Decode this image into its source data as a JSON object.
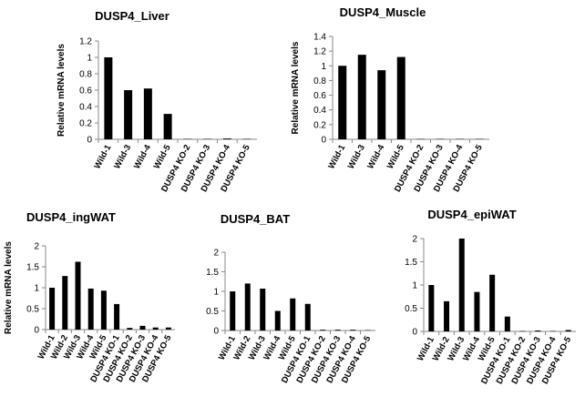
{
  "chart_data": [
    {
      "type": "bar",
      "title": "DUSP4_Liver",
      "y_label": "Relative mRNA levels",
      "categories": [
        "Wild-1",
        "Wild-3",
        "Wild-4",
        "Wild-5",
        "DUSP4 KO-2",
        "DUSP4 KO-3",
        "DUSP4 KO-4",
        "DUSP4 KO-5"
      ],
      "values": [
        1.0,
        0.6,
        0.62,
        0.31,
        0.005,
        0.005,
        0.01,
        0.005
      ],
      "color": "#000000",
      "ylim": [
        0,
        1.2
      ],
      "yticks": [
        0,
        0.2,
        0.4,
        0.6,
        0.8,
        1,
        1.2
      ]
    },
    {
      "type": "bar",
      "title": "DUSP4_Muscle",
      "y_label": "Relative mRNA levels",
      "categories": [
        "Wild-1",
        "Wild-3",
        "Wild-4",
        "Wild-5",
        "DUSP4 KO-2",
        "DUSP4 KO-3",
        "DUSP4 KO-4",
        "DUSP4 KO-5"
      ],
      "values": [
        1.0,
        1.15,
        0.94,
        1.12,
        0.005,
        0.005,
        0.005,
        0.005
      ],
      "color": "#000000",
      "ylim": [
        0,
        1.4
      ],
      "yticks": [
        0,
        0.2,
        0.4,
        0.6,
        0.8,
        1,
        1.2,
        1.4
      ]
    },
    {
      "type": "bar",
      "title": "DUSP4_ingWAT",
      "y_label": "Relative mRNA levels",
      "categories": [
        "Wild-1",
        "Wild-2",
        "Wild-3",
        "Wild-4",
        "Wild-5",
        "DUSP4 KO-1",
        "DUSP4 KO-2",
        "DUSP4 KO-3",
        "DUSP4 KO-4",
        "DUSP4 KO-5"
      ],
      "values": [
        1.0,
        1.28,
        1.62,
        0.98,
        0.93,
        0.61,
        0.04,
        0.09,
        0.05,
        0.05
      ],
      "color": "#000000",
      "ylim": [
        0,
        2
      ],
      "yticks": [
        0,
        0.5,
        1,
        1.5,
        2
      ]
    },
    {
      "type": "bar",
      "title": "DUSP4_BAT",
      "categories": [
        "Wild-1",
        "Wild-2",
        "Wild-3",
        "Wild-4",
        "Wild-5",
        "DUSP4 KO-1",
        "DUSP4 KO-2",
        "DUSP4 KO-3",
        "DUSP4 KO-4",
        "DUSP4 KO-5"
      ],
      "values": [
        1.0,
        1.2,
        1.07,
        0.5,
        0.82,
        0.68,
        0.02,
        0.02,
        0.02,
        0.01
      ],
      "color": "#000000",
      "ylim": [
        0,
        2
      ],
      "yticks": [
        0,
        0.5,
        1,
        1.5,
        2
      ]
    },
    {
      "type": "bar",
      "title": "DUSP4_epiWAT",
      "categories": [
        "Wild-1",
        "Wild-2",
        "Wild-3",
        "Wild-4",
        "Wild-5",
        "DUSP4 KO-1",
        "DUSP4 KO-2",
        "DUSP4 KO-3",
        "DUSP4 KO-4",
        "DUSP4 KO-5"
      ],
      "values": [
        1.0,
        0.65,
        2.0,
        0.85,
        1.22,
        0.32,
        0.01,
        0.02,
        0.01,
        0.03
      ],
      "color": "#000000",
      "ylim": [
        0,
        2
      ],
      "yticks": [
        0,
        0.5,
        1,
        1.5,
        2
      ]
    }
  ]
}
